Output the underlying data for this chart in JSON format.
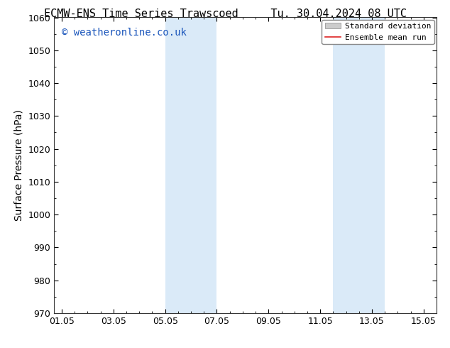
{
  "title_left": "ECMW-ENS Time Series Trawscoed",
  "title_right": "Tu. 30.04.2024 08 UTC",
  "ylabel": "Surface Pressure (hPa)",
  "ylim": [
    970,
    1060
  ],
  "ytick_step": 10,
  "bg_color": "#ffffff",
  "plot_bg_color": "#ffffff",
  "shaded_regions": [
    {
      "x_start": 4.0,
      "x_end": 6.0,
      "color": "#daeaf8"
    },
    {
      "x_start": 10.5,
      "x_end": 12.5,
      "color": "#daeaf8"
    }
  ],
  "xtick_labels": [
    "01.05",
    "03.05",
    "05.05",
    "07.05",
    "09.05",
    "11.05",
    "13.05",
    "15.05"
  ],
  "xtick_positions": [
    0,
    2,
    4,
    6,
    8,
    10,
    12,
    14
  ],
  "xlim": [
    -0.3,
    14.5
  ],
  "watermark_text": "© weatheronline.co.uk",
  "watermark_color": "#1a55bb",
  "legend_entries": [
    {
      "label": "Standard deviation",
      "color": "#cccccc",
      "type": "patch"
    },
    {
      "label": "Ensemble mean run",
      "color": "#dd2222",
      "type": "line"
    }
  ],
  "title_fontsize": 11,
  "axis_label_fontsize": 10,
  "tick_fontsize": 9,
  "watermark_fontsize": 10,
  "legend_fontsize": 8,
  "border_color": "#333333"
}
